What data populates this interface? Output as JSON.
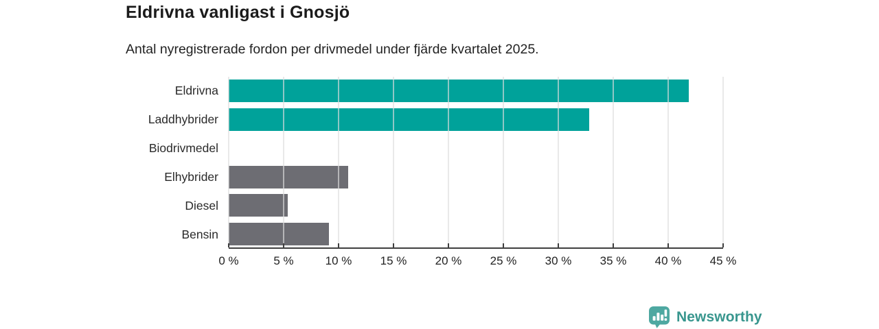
{
  "header": {
    "title": "Eldrivna vanligast i Gnosjö",
    "subtitle": "Antal nyregistrerade fordon per drivmedel under fjärde kvartalet 2025."
  },
  "chart_data": {
    "type": "bar",
    "orientation": "horizontal",
    "title": "Eldrivna vanligast i Gnosjö",
    "subtitle": "Antal nyregistrerade fordon per drivmedel under fjärde kvartalet 2025.",
    "categories": [
      "Eldrivna",
      "Laddhybrider",
      "Biodrivmedel",
      "Elhybrider",
      "Diesel",
      "Bensin"
    ],
    "values": [
      41.9,
      32.8,
      0,
      10.9,
      5.4,
      9.1
    ],
    "unit": "%",
    "bar_colors": [
      "#00a29a",
      "#00a29a",
      "#6d6d73",
      "#6d6d73",
      "#6d6d73",
      "#6d6d73"
    ],
    "xlabel": "",
    "ylabel": "",
    "xlim": [
      0,
      45
    ],
    "x_ticks": [
      0,
      5,
      10,
      15,
      20,
      25,
      30,
      35,
      40,
      45
    ],
    "x_tick_labels": [
      "0 %",
      "5 %",
      "10 %",
      "15 %",
      "20 %",
      "25 %",
      "30 %",
      "35 %",
      "40 %",
      "45 %"
    ],
    "grid": "vertical",
    "legend": "none"
  },
  "branding": {
    "logo_text": "Newsworthy"
  },
  "colors": {
    "accent_teal": "#00a29a",
    "neutral_gray": "#6d6d73",
    "gridline": "#e5e5e5",
    "axis": "#3f3f3f",
    "logo_text": "#38968e",
    "logo_icon": "#4ea8a1"
  }
}
